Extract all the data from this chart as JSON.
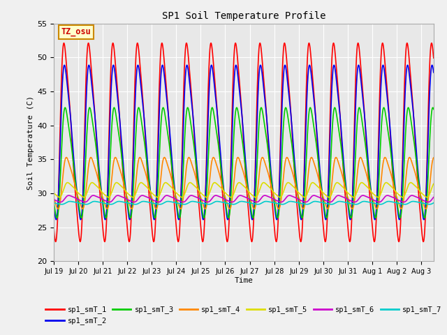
{
  "title": "SP1 Soil Temperature Profile",
  "xlabel": "Time",
  "ylabel": "Soil Temperature (C)",
  "ylim": [
    20,
    55
  ],
  "tz_label": "TZ_osu",
  "fig_bg_color": "#f0f0f0",
  "plot_bg_color": "#e8e8e8",
  "grid_color": "white",
  "series": [
    {
      "label": "sp1_smT_1",
      "color": "#ff0000",
      "mean": 37.5,
      "amp": 13.5,
      "phase": 0.25,
      "decay": 0.0
    },
    {
      "label": "sp1_smT_2",
      "color": "#0000ee",
      "mean": 37.5,
      "amp": 10.5,
      "phase": 0.27,
      "decay": 0.0
    },
    {
      "label": "sp1_smT_3",
      "color": "#00cc00",
      "mean": 34.5,
      "amp": 7.5,
      "phase": 0.3,
      "decay": 0.0
    },
    {
      "label": "sp1_smT_4",
      "color": "#ff8800",
      "mean": 31.5,
      "amp": 3.5,
      "phase": 0.35,
      "decay": 0.0
    },
    {
      "label": "sp1_smT_5",
      "color": "#dddd00",
      "mean": 30.5,
      "amp": 1.0,
      "phase": 0.4,
      "decay": 0.0
    },
    {
      "label": "sp1_smT_6",
      "color": "#cc00cc",
      "mean": 29.2,
      "amp": 0.45,
      "phase": 0.45,
      "decay": 0.0
    },
    {
      "label": "sp1_smT_7",
      "color": "#00cccc",
      "mean": 28.6,
      "amp": 0.2,
      "phase": 0.5,
      "decay": 0.0
    }
  ],
  "tick_labels": [
    "Jul 19",
    "Jul 20",
    "Jul 21",
    "Jul 22",
    "Jul 23",
    "Jul 24",
    "Jul 25",
    "Jul 26",
    "Jul 27",
    "Jul 28",
    "Jul 29",
    "Jul 30",
    "Jul 31",
    "Aug 1",
    "Aug 2",
    "Aug 3"
  ]
}
